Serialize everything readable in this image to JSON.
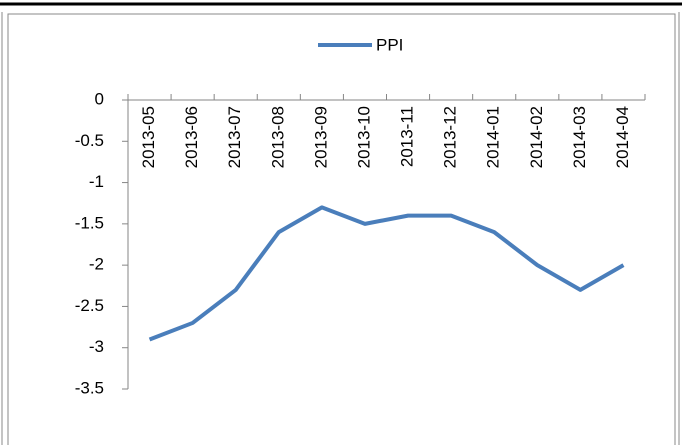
{
  "chart_data": {
    "type": "line",
    "categories": [
      "2013-05",
      "2013-06",
      "2013-07",
      "2013-08",
      "2013-09",
      "2013-10",
      "2013-11",
      "2013-12",
      "2014-01",
      "2014-02",
      "2014-03",
      "2014-04"
    ],
    "series": [
      {
        "name": "PPI",
        "color": "#4a7ebb",
        "values": [
          -2.9,
          -2.7,
          -2.3,
          -1.6,
          -1.3,
          -1.5,
          -1.4,
          -1.4,
          -1.6,
          -2.0,
          -2.3,
          -2.0
        ]
      }
    ],
    "ylim": [
      -3.5,
      0
    ],
    "yticks": [
      0,
      -0.5,
      -1,
      -1.5,
      -2,
      -2.5,
      -3,
      -3.5
    ],
    "legend": "top"
  }
}
